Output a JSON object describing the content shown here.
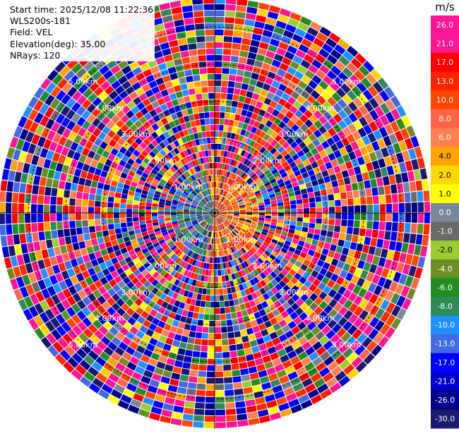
{
  "info": {
    "start_time": "Start time: 2025/12/08 11:22:36",
    "station": "WLS200s-181",
    "field": "Field: VEL",
    "elevation": "Elevation(deg): 35.00",
    "nrays": "NRays: 120"
  },
  "chart_data": {
    "type": "heatmap",
    "projection": "polar-ppi",
    "title": "",
    "field": "VEL",
    "elevation_deg": 35.0,
    "n_rays": 120,
    "range_ring_labels": [
      "1.00km",
      "2.00km",
      "3.00km",
      "4.00km",
      "5.00km"
    ],
    "range_rings_km": [
      1,
      2,
      3,
      4,
      5
    ],
    "max_range_km": 5.8,
    "colorbar": {
      "unit": "m/s",
      "tick_labels": [
        "26.0",
        "21.0",
        "17.0",
        "13.0",
        "10.0",
        "8.0",
        "6.0",
        "4.0",
        "2.0",
        "1.0",
        "0.0",
        "-1.0",
        "-2.0",
        "-4.0",
        "-6.0",
        "-8.0",
        "-10.0",
        "-13.0",
        "-17.0",
        "-21.0",
        "-26.0",
        "-30.0"
      ],
      "colors": [
        "#ff1493",
        "#ff1493",
        "#ff0000",
        "#ff2400",
        "#ff4500",
        "#ff6347",
        "#ff7f50",
        "#ffa500",
        "#ffd700",
        "#ffff00",
        "#778899",
        "#696969",
        "#9acd32",
        "#6b8e23",
        "#228b22",
        "#2e8b57",
        "#1e90ff",
        "#4169e1",
        "#0000ff",
        "#0000cd",
        "#00008b",
        "#191970"
      ]
    },
    "pattern": "near range (inside ~1 km) mostly positive velocities (orange/red/yellow) on the east side and mixed negative velocities (blue/green) on the west; beyond ~1 km the field is noise across the full color scale"
  }
}
